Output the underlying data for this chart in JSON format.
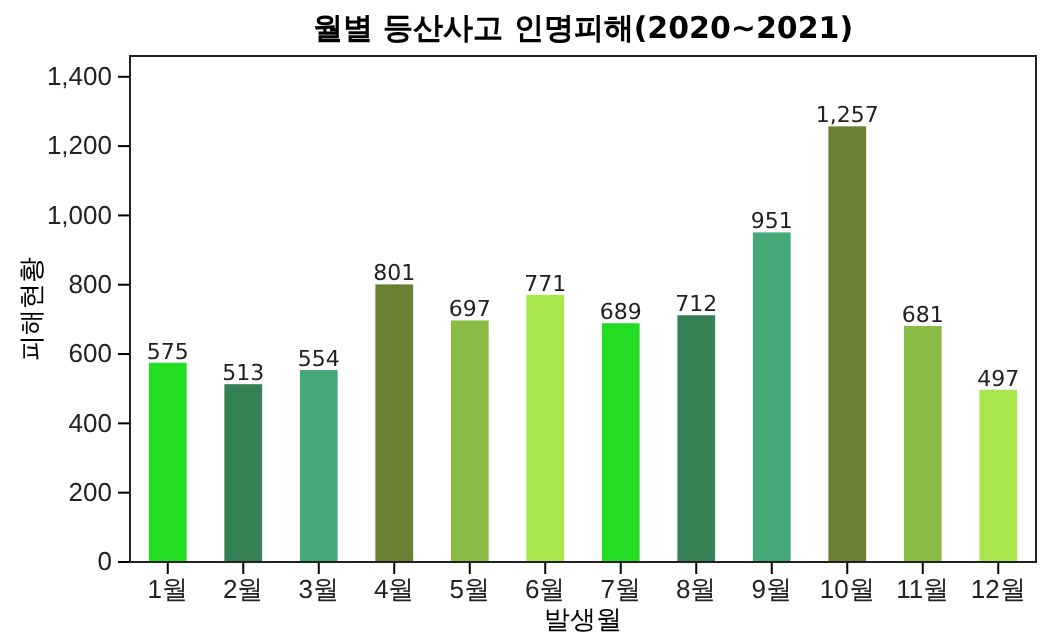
{
  "chart_data": {
    "type": "bar",
    "title": "월별 등산사고 인명피해(2020~2021)",
    "xlabel": "발생월",
    "ylabel": "피해현황",
    "categories": [
      "1월",
      "2월",
      "3월",
      "4월",
      "5월",
      "6월",
      "7월",
      "8월",
      "9월",
      "10월",
      "11월",
      "12월"
    ],
    "values": [
      575,
      513,
      554,
      801,
      697,
      771,
      689,
      712,
      951,
      1257,
      681,
      497
    ],
    "colors": [
      "#22dd22",
      "#358055",
      "#44a877",
      "#6a8033",
      "#8abb44",
      "#a8e64d",
      "#22dd22",
      "#358055",
      "#44a877",
      "#6a8033",
      "#8abb44",
      "#a8e64d"
    ],
    "value_labels": [
      "575",
      "513",
      "554",
      "801",
      "697",
      "771",
      "689",
      "712",
      "951",
      "1,257",
      "681",
      "497"
    ],
    "ylim": [
      0,
      1460
    ],
    "yticks": [
      0,
      200,
      400,
      600,
      800,
      {
        "value": 1000,
        "label": "1,000"
      },
      {
        "value": 1200,
        "label": "1,200"
      },
      {
        "value": 1400,
        "label": "1,400"
      }
    ]
  }
}
